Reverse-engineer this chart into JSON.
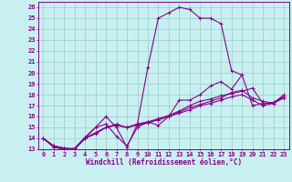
{
  "title": "",
  "xlabel": "Windchill (Refroidissement éolien,°C)",
  "bg_color": "#c8f0f0",
  "line_color": "#880088",
  "grid_color": "#99cccc",
  "xlim": [
    -0.5,
    23.5
  ],
  "ylim": [
    13,
    26.5
  ],
  "xticks": [
    0,
    1,
    2,
    3,
    4,
    5,
    6,
    7,
    8,
    9,
    10,
    11,
    12,
    13,
    14,
    15,
    16,
    17,
    18,
    19,
    20,
    21,
    22,
    23
  ],
  "yticks": [
    13,
    14,
    15,
    16,
    17,
    18,
    19,
    20,
    21,
    22,
    23,
    24,
    25,
    26
  ],
  "series": [
    [
      14.0,
      13.2,
      13.0,
      13.0,
      14.0,
      15.0,
      16.0,
      15.0,
      13.2,
      15.3,
      20.5,
      25.0,
      25.5,
      26.0,
      25.8,
      25.0,
      25.0,
      24.5,
      20.2,
      19.8,
      null,
      null,
      null,
      null
    ],
    [
      14.0,
      13.2,
      13.0,
      13.1,
      14.1,
      15.0,
      15.3,
      14.2,
      13.3,
      15.0,
      15.5,
      15.2,
      16.0,
      17.5,
      17.5,
      18.0,
      18.8,
      19.2,
      18.5,
      19.8,
      17.0,
      17.2,
      17.3,
      17.8
    ],
    [
      14.0,
      13.3,
      13.1,
      13.0,
      14.0,
      14.5,
      15.0,
      15.3,
      15.0,
      15.3,
      15.5,
      15.8,
      16.1,
      16.5,
      17.0,
      17.4,
      17.6,
      17.9,
      18.1,
      18.3,
      18.6,
      17.2,
      17.2,
      17.8
    ],
    [
      14.0,
      13.3,
      13.1,
      13.0,
      14.0,
      14.4,
      15.0,
      15.2,
      15.0,
      15.2,
      15.4,
      15.7,
      16.0,
      16.3,
      16.6,
      17.0,
      17.2,
      17.5,
      17.8,
      18.0,
      17.5,
      17.0,
      17.2,
      17.7
    ],
    [
      14.0,
      13.3,
      13.1,
      13.0,
      14.0,
      14.5,
      15.0,
      15.2,
      15.0,
      15.3,
      15.5,
      15.7,
      16.0,
      16.4,
      16.8,
      17.1,
      17.4,
      17.7,
      18.2,
      18.4,
      17.7,
      17.4,
      17.2,
      18.0
    ]
  ]
}
